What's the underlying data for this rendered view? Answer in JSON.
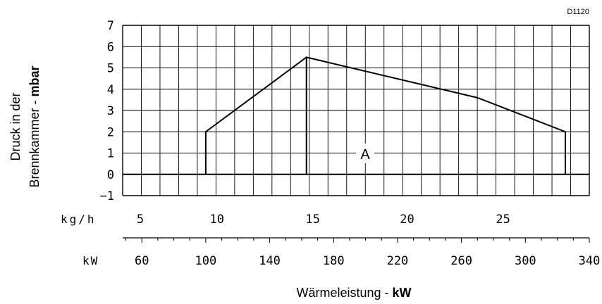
{
  "chart_data": {
    "type": "line",
    "figure_code": "D1120",
    "ylabel_line1": "Druck in der",
    "ylabel_line2_normal": "Brennkammer - ",
    "ylabel_line2_bold": "mbar",
    "xlabel_normal": "Wärmeleistung - ",
    "xlabel_bold": "kW",
    "ylim": [
      -1,
      7
    ],
    "y_ticks": [
      -1,
      0,
      1,
      2,
      3,
      4,
      5,
      6,
      7
    ],
    "xlim_kw": [
      48,
      340
    ],
    "grid": true,
    "region_label": "A",
    "series": [
      {
        "x_kw": [
          100,
          100,
          163,
          270,
          325,
          325
        ],
        "y": [
          0,
          2,
          5.5,
          3.6,
          2,
          0
        ]
      }
    ],
    "vertical_line_kw": {
      "x": 163,
      "y_from": 0,
      "y_to": 5.5
    },
    "kgh_axis": {
      "unit": "kg/h",
      "tick_labels": [
        "5",
        "10",
        "15",
        "20",
        "25"
      ],
      "tick_values_kw": [
        59,
        107,
        167,
        226,
        286
      ]
    },
    "kw_axis": {
      "unit": "kW",
      "tick_labels": [
        "60",
        "100",
        "140",
        "180",
        "220",
        "260",
        "300",
        "340"
      ],
      "tick_values_kw": [
        60,
        100,
        140,
        180,
        220,
        260,
        300,
        340
      ]
    }
  }
}
